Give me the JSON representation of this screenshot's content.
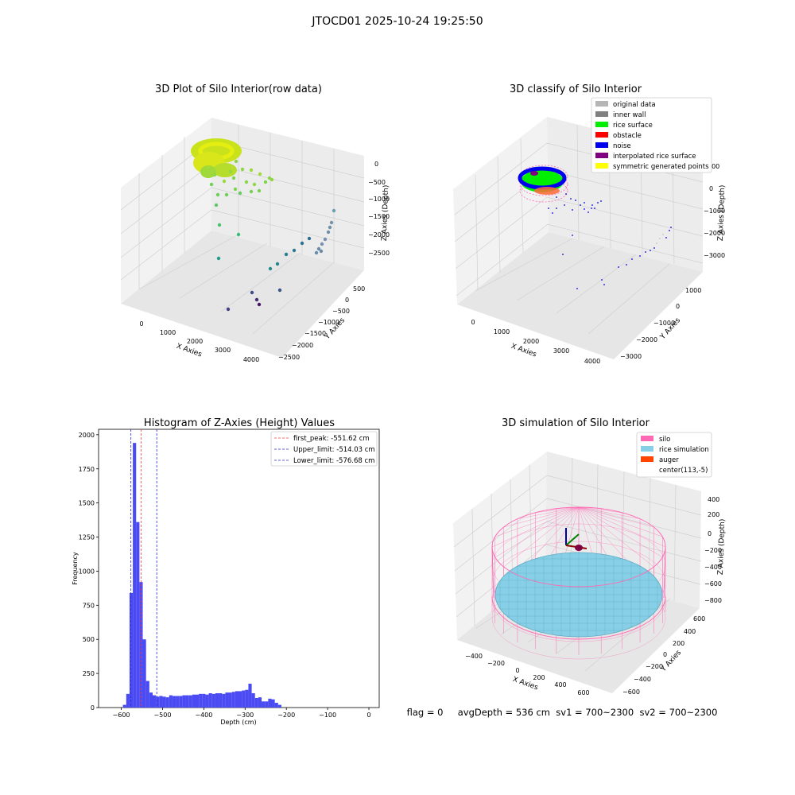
{
  "suptitle": "JTOCD01 2025-10-24 19:25:50",
  "status_text": "flag = 0     avgDepth = 536 cm  sv1 = 700~2300  sv2 = 700~2300",
  "colors": {
    "hist_bar": "#4b4bf4",
    "first_peak": "#ff3b3b",
    "limit": "#2b2bd6",
    "silo": "#ff69b4",
    "rice": "#87cfe6",
    "auger": "#ff4500"
  },
  "chart_data": [
    {
      "type": "scatter",
      "title": "3D Plot of Silo Interior(row data)",
      "xlabel": "X Axies",
      "ylabel": "Y Axies",
      "zlabel": "Z Axies (Depth)",
      "x_ticks": [
        "0",
        "1000",
        "2000",
        "3000",
        "4000"
      ],
      "y_ticks": [
        "500",
        "0",
        "−500",
        "−1000",
        "−1500",
        "−2000",
        "−2500"
      ],
      "z_ticks": [
        "0",
        "−500",
        "−1000",
        "−1500",
        "−2000",
        "−2500"
      ],
      "colormap": "viridis (by depth)"
    },
    {
      "type": "scatter",
      "title": "3D classify of Silo Interior",
      "xlabel": "X Axies",
      "ylabel": "Y Axies",
      "zlabel": "Z Axies (Depth)",
      "x_ticks": [
        "0",
        "1000",
        "2000",
        "3000",
        "4000"
      ],
      "y_ticks": [
        "1000",
        "0",
        "−1000",
        "−2000",
        "−3000"
      ],
      "z_ticks": [
        "000",
        "0",
        "−1000",
        "−2000",
        "−3000"
      ],
      "legend_position": "top-right",
      "legend": [
        {
          "label": "original data",
          "color": "#b5b5b5"
        },
        {
          "label": "inner wall",
          "color": "#808080"
        },
        {
          "label": "rice surface",
          "color": "#00ee00"
        },
        {
          "label": "obstacle",
          "color": "#ff0000"
        },
        {
          "label": "noise",
          "color": "#0000ee"
        },
        {
          "label": "interpolated rice surface",
          "color": "#800080"
        },
        {
          "label": "symmetric generated points",
          "color": "#ffff00"
        }
      ]
    },
    {
      "type": "bar",
      "title": "Histogram of Z-Axies (Height) Values",
      "xlabel": "Depth (cm)",
      "ylabel": "Frequency",
      "xlim": [
        -655,
        25
      ],
      "ylim": [
        0,
        2040
      ],
      "x_ticks": [
        -600,
        -500,
        -400,
        -300,
        -200,
        -100,
        0
      ],
      "y_ticks": [
        0,
        250,
        500,
        750,
        1000,
        1250,
        1500,
        1750,
        2000
      ],
      "x_tick_labels": [
        "−600",
        "−500",
        "−400",
        "−300",
        "−200",
        "−100",
        "0"
      ],
      "bin_start": -596,
      "bin_width": 8,
      "values": [
        20,
        100,
        840,
        1940,
        1360,
        920,
        500,
        195,
        110,
        90,
        80,
        85,
        80,
        75,
        90,
        85,
        85,
        85,
        90,
        90,
        90,
        95,
        95,
        100,
        100,
        95,
        105,
        100,
        105,
        105,
        100,
        110,
        110,
        115,
        120,
        120,
        125,
        130,
        175,
        105,
        70,
        75,
        45,
        45,
        65,
        60,
        35,
        20
      ],
      "lines": [
        {
          "label": "first_peak: -551.62 cm",
          "x": -551.62,
          "style": "first_peak"
        },
        {
          "label": "Upper_limit: -514.03 cm",
          "x": -514.03,
          "style": "limit"
        },
        {
          "label": "Lower_limit: -576.68 cm",
          "x": -576.68,
          "style": "limit"
        }
      ],
      "legend_position": "top-right"
    },
    {
      "type": "scatter",
      "title": "3D simulation of Silo Interior",
      "xlabel": "X Axies",
      "ylabel": "Y Axies",
      "zlabel": "Z Axies (Depth)",
      "x_ticks": [
        "−400",
        "−200",
        "0",
        "200",
        "400",
        "600"
      ],
      "y_ticks": [
        "600",
        "400",
        "200",
        "0",
        "−200",
        "−400",
        "−600"
      ],
      "z_ticks": [
        "400",
        "200",
        "0",
        "−200",
        "−400",
        "−600",
        "−800"
      ],
      "legend_position": "top-right",
      "legend": [
        {
          "label": "silo",
          "color": "#ff69b4"
        },
        {
          "label": "rice simulation",
          "color": "#87cfe6"
        },
        {
          "label": "auger",
          "color": "#ff4500"
        },
        {
          "label": "center(113,-5)",
          "color": "none"
        }
      ]
    }
  ]
}
